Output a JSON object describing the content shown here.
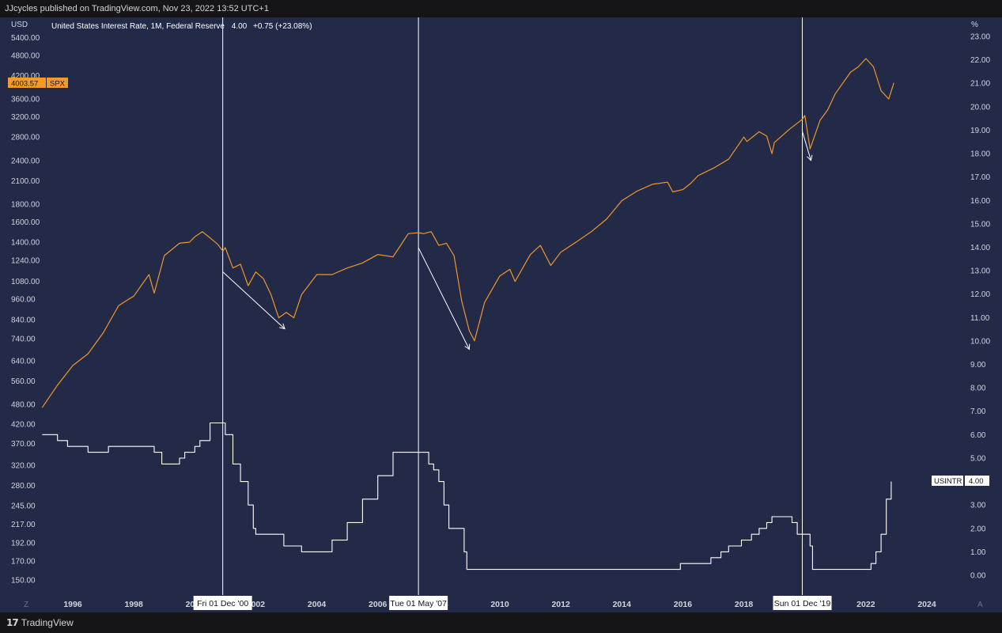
{
  "header": {
    "publisher": "JJcycles published on TradingView.com, Nov 23, 2022 13:52 UTC+1"
  },
  "legend": {
    "symbol_text": "United States Interest Rate, 1M, Federal Reserve",
    "value": "4.00",
    "change": "+0.75 (+23.08%)"
  },
  "axes": {
    "left_unit": "USD",
    "right_unit": "%",
    "left_ticks": [
      "5400.00",
      "4800.00",
      "4200.00",
      "3600.00",
      "3200.00",
      "2800.00",
      "2400.00",
      "2100.00",
      "1800.00",
      "1600.00",
      "1400.00",
      "1240.00",
      "1080.00",
      "960.00",
      "840.00",
      "740.00",
      "640.00",
      "560.00",
      "480.00",
      "420.00",
      "370.00",
      "320.00",
      "280.00",
      "245.00",
      "217.00",
      "192.00",
      "170.00",
      "150.00"
    ],
    "right_ticks": [
      "23.00",
      "22.00",
      "21.00",
      "20.00",
      "19.00",
      "18.00",
      "17.00",
      "16.00",
      "15.00",
      "14.00",
      "13.00",
      "12.00",
      "11.00",
      "10.00",
      "9.00",
      "8.00",
      "7.00",
      "6.00",
      "5.00",
      "4.00",
      "3.00",
      "2.00",
      "1.00",
      "0.00"
    ],
    "x_ticks": [
      "1996",
      "1998",
      "2000",
      "2002",
      "2004",
      "2006",
      "2008",
      "2010",
      "2012",
      "2014",
      "2016",
      "2018",
      "2020",
      "2022",
      "2024"
    ],
    "corner_left": "Z",
    "corner_right": "A"
  },
  "badges": {
    "spx_price": "4003.57",
    "spx_label": "SPX",
    "usintr_label": "USINTR",
    "usintr_value": "4.00"
  },
  "markers": [
    {
      "label": "Fri 01 Dec '00",
      "date": 2000.917
    },
    {
      "label": "Tue 01 May '07",
      "date": 2007.333
    },
    {
      "label": "Sun 01 Dec '19",
      "date": 2019.917
    }
  ],
  "colors": {
    "background": "#232a48",
    "spx": "#f0962a",
    "rate": "#ffffff",
    "grid_text": "#d1d4dc",
    "badge_spx": "#f59b24"
  },
  "chart_data": {
    "type": "line",
    "xlabel": "",
    "ylabel": "",
    "xlim": [
      1995.0,
      2025.0
    ],
    "left_axis_scale": "log",
    "right_axis_scale": "linear",
    "grid": false,
    "series": [
      {
        "name": "SPX",
        "axis": "left",
        "x": [
          1995.0,
          1995.5,
          1996.0,
          1996.5,
          1997.0,
          1997.5,
          1997.83,
          1998.0,
          1998.5,
          1998.67,
          1999.0,
          1999.5,
          1999.83,
          2000.0,
          2000.25,
          2000.5,
          2000.75,
          2000.92,
          2001.0,
          2001.25,
          2001.5,
          2001.75,
          2002.0,
          2002.25,
          2002.5,
          2002.75,
          2003.0,
          2003.25,
          2003.5,
          2004.0,
          2004.5,
          2005.0,
          2005.5,
          2006.0,
          2006.5,
          2007.0,
          2007.33,
          2007.5,
          2007.75,
          2008.0,
          2008.25,
          2008.5,
          2008.75,
          2009.0,
          2009.17,
          2009.5,
          2010.0,
          2010.33,
          2010.5,
          2011.0,
          2011.33,
          2011.67,
          2012.0,
          2012.5,
          2013.0,
          2013.5,
          2014.0,
          2014.5,
          2015.0,
          2015.5,
          2015.67,
          2016.0,
          2016.25,
          2016.5,
          2017.0,
          2017.5,
          2018.0,
          2018.1,
          2018.5,
          2018.75,
          2018.92,
          2019.0,
          2019.5,
          2019.92,
          2020.0,
          2020.17,
          2020.5,
          2020.75,
          2021.0,
          2021.5,
          2021.75,
          2022.0,
          2022.25,
          2022.5,
          2022.75,
          2022.92
        ],
        "values": [
          470,
          545,
          620,
          670,
          770,
          920,
          960,
          980,
          1130,
          1000,
          1280,
          1390,
          1400,
          1450,
          1500,
          1440,
          1380,
          1320,
          1350,
          1180,
          1210,
          1050,
          1150,
          1100,
          990,
          850,
          880,
          850,
          990,
          1130,
          1130,
          1180,
          1220,
          1290,
          1270,
          1480,
          1490,
          1480,
          1500,
          1370,
          1390,
          1280,
          950,
          780,
          730,
          940,
          1120,
          1170,
          1080,
          1290,
          1370,
          1200,
          1310,
          1400,
          1500,
          1630,
          1840,
          1960,
          2050,
          2080,
          1950,
          1980,
          2060,
          2170,
          2280,
          2420,
          2800,
          2720,
          2900,
          2820,
          2510,
          2700,
          2950,
          3150,
          3230,
          2590,
          3130,
          3350,
          3730,
          4300,
          4450,
          4700,
          4450,
          3800,
          3600,
          4003.57
        ]
      },
      {
        "name": "USINTR",
        "axis": "right",
        "x": [
          1995.0,
          1995.25,
          1995.5,
          1995.83,
          1996.0,
          1996.5,
          1997.0,
          1997.17,
          1997.5,
          1998.0,
          1998.67,
          1998.92,
          1999.0,
          1999.5,
          1999.67,
          2000.0,
          2000.17,
          2000.5,
          2000.92,
          2001.0,
          2001.25,
          2001.5,
          2001.75,
          2001.92,
          2002.0,
          2002.5,
          2002.92,
          2003.0,
          2003.5,
          2004.0,
          2004.5,
          2005.0,
          2005.5,
          2006.0,
          2006.5,
          2007.0,
          2007.5,
          2007.67,
          2007.83,
          2008.0,
          2008.17,
          2008.33,
          2008.5,
          2008.83,
          2008.92,
          2009.0,
          2010.0,
          2012.0,
          2014.0,
          2015.83,
          2015.92,
          2016.0,
          2016.92,
          2017.0,
          2017.25,
          2017.5,
          2017.92,
          2018.0,
          2018.25,
          2018.5,
          2018.75,
          2018.92,
          2019.0,
          2019.5,
          2019.58,
          2019.75,
          2019.83,
          2020.0,
          2020.17,
          2020.25,
          2020.5,
          2021.0,
          2021.5,
          2022.0,
          2022.17,
          2022.33,
          2022.5,
          2022.67,
          2022.83
        ],
        "values": [
          6.0,
          6.0,
          5.75,
          5.5,
          5.5,
          5.25,
          5.25,
          5.5,
          5.5,
          5.5,
          5.25,
          4.75,
          4.75,
          5.0,
          5.25,
          5.5,
          5.75,
          6.5,
          6.5,
          6.0,
          4.75,
          4.0,
          3.0,
          2.0,
          1.75,
          1.75,
          1.25,
          1.25,
          1.0,
          1.0,
          1.5,
          2.25,
          3.25,
          4.25,
          5.25,
          5.25,
          5.25,
          4.75,
          4.5,
          4.0,
          3.0,
          2.0,
          2.0,
          1.0,
          0.25,
          0.25,
          0.25,
          0.25,
          0.25,
          0.25,
          0.5,
          0.5,
          0.75,
          0.75,
          1.0,
          1.25,
          1.5,
          1.5,
          1.75,
          2.0,
          2.25,
          2.5,
          2.5,
          2.5,
          2.25,
          1.75,
          1.75,
          1.75,
          1.25,
          0.25,
          0.25,
          0.25,
          0.25,
          0.25,
          0.5,
          1.0,
          1.75,
          3.25,
          4.0
        ]
      }
    ]
  }
}
